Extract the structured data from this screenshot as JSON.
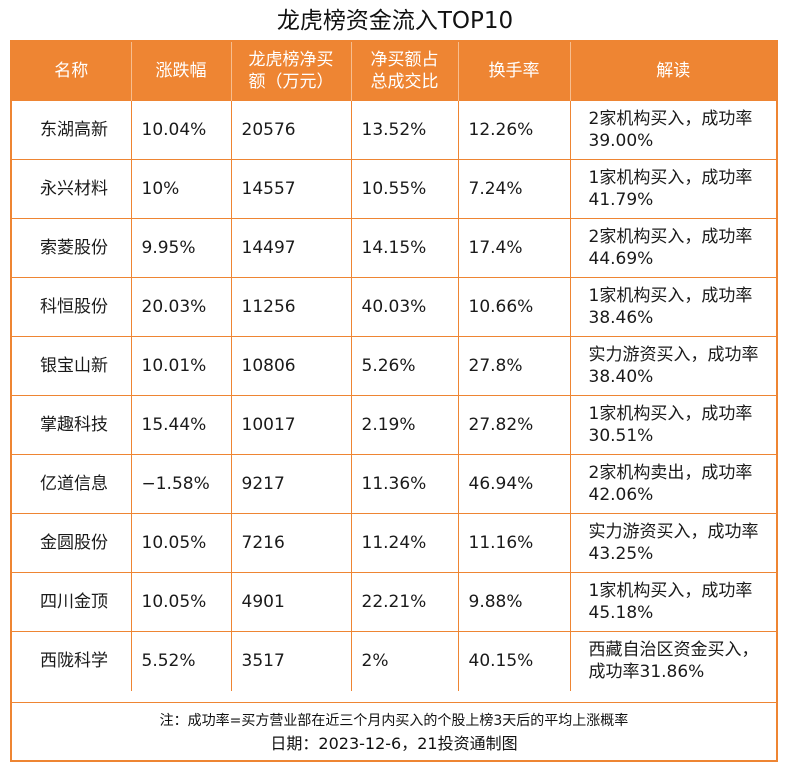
{
  "title": "龙虎榜资金流入TOP10",
  "colors": {
    "accent": "#EE8533",
    "header_text": "#FFFFFF"
  },
  "columns": [
    "名称",
    "涨跌幅",
    "龙虎榜净买额（万元）",
    "净买额占总成交比",
    "换手率",
    "解读"
  ],
  "rows": [
    [
      "东湖高新",
      "10.04%",
      "20576",
      "13.52%",
      "12.26%",
      "2家机构买入，成功率39.00%"
    ],
    [
      "永兴材料",
      "10%",
      "14557",
      "10.55%",
      "7.24%",
      "1家机构买入，成功率41.79%"
    ],
    [
      "索菱股份",
      "9.95%",
      "14497",
      "14.15%",
      "17.4%",
      "2家机构买入，成功率44.69%"
    ],
    [
      "科恒股份",
      "20.03%",
      "11256",
      "40.03%",
      "10.66%",
      "1家机构买入，成功率38.46%"
    ],
    [
      "银宝山新",
      "10.01%",
      "10806",
      "5.26%",
      "27.8%",
      "实力游资买入，成功率38.40%"
    ],
    [
      "掌趣科技",
      "15.44%",
      "10017",
      "2.19%",
      "27.82%",
      "1家机构买入，成功率30.51%"
    ],
    [
      "亿道信息",
      "−1.58%",
      "9217",
      "11.36%",
      "46.94%",
      "2家机构卖出，成功率42.06%"
    ],
    [
      "金圆股份",
      "10.05%",
      "7216",
      "11.24%",
      "11.16%",
      "实力游资买入，成功率43.25%"
    ],
    [
      "四川金顶",
      "10.05%",
      "4901",
      "22.21%",
      "9.88%",
      "1家机构买入，成功率45.18%"
    ],
    [
      "西陇科学",
      "5.52%",
      "3517",
      "2%",
      "40.15%",
      "西藏自治区资金买入，成功率31.86%"
    ]
  ],
  "footer": {
    "note": "注：成功率=买方营业部在近三个月内买入的个股上榜3天后的平均上涨概率",
    "date": "日期：2023-12-6，21投资通制图"
  }
}
